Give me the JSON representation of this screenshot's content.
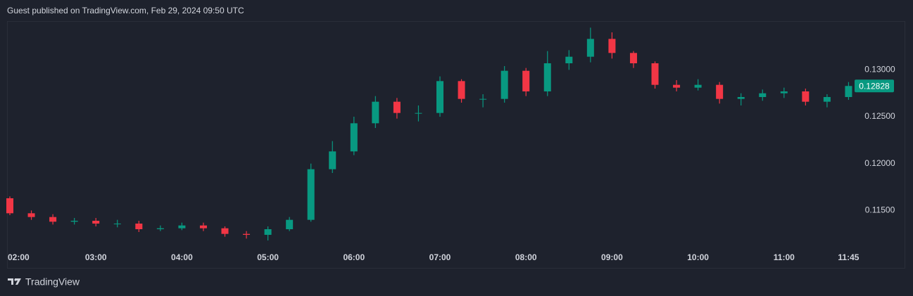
{
  "header": {
    "text": "Guest published on TradingView.com, Feb 29, 2024 09:50 UTC"
  },
  "footer": {
    "brand": "TradingView"
  },
  "chart_data": {
    "type": "candlestick",
    "categories": [
      "02:00",
      null,
      null,
      null,
      "03:00",
      null,
      null,
      null,
      "04:00",
      null,
      null,
      null,
      "05:00",
      null,
      null,
      null,
      "06:00",
      null,
      null,
      null,
      "07:00",
      null,
      null,
      null,
      "08:00",
      null,
      null,
      null,
      "09:00",
      null,
      null,
      null,
      "10:00",
      null,
      null,
      null,
      "11:00",
      null,
      null,
      "11:45"
    ],
    "open": [
      0.1163,
      0.1147,
      0.1143,
      0.1138,
      0.1139,
      0.1136,
      0.1136,
      0.113,
      0.1131,
      0.1134,
      0.1131,
      0.1125,
      0.1124,
      0.113,
      0.114,
      0.1194,
      0.1213,
      0.1243,
      0.1266,
      0.1254,
      0.1254,
      0.1288,
      0.1269,
      0.1269,
      0.1299,
      0.1277,
      0.1307,
      0.1314,
      0.1333,
      0.1318,
      0.1307,
      0.1284,
      0.1281,
      0.1284,
      0.1269,
      0.1271,
      0.1275,
      0.1277,
      0.1266,
      0.1271
    ],
    "high": [
      0.1165,
      0.115,
      0.1146,
      0.1142,
      0.1142,
      0.114,
      0.1139,
      0.1134,
      0.1137,
      0.1137,
      0.1133,
      0.1128,
      0.1133,
      0.1143,
      0.12,
      0.1224,
      0.125,
      0.1272,
      0.127,
      0.1262,
      0.1293,
      0.129,
      0.1274,
      0.1304,
      0.1302,
      0.132,
      0.1321,
      0.1345,
      0.134,
      0.132,
      0.1309,
      0.1289,
      0.129,
      0.1287,
      0.1275,
      0.1279,
      0.1281,
      0.128,
      0.1274,
      0.1287
    ],
    "low": [
      0.1145,
      0.114,
      0.1135,
      0.1135,
      0.1133,
      0.1132,
      0.1127,
      0.1128,
      0.1129,
      0.1128,
      0.1122,
      0.112,
      0.1118,
      0.1128,
      0.1138,
      0.119,
      0.1209,
      0.1238,
      0.1248,
      0.1245,
      0.125,
      0.1265,
      0.126,
      0.1265,
      0.1272,
      0.1272,
      0.13,
      0.1308,
      0.1312,
      0.1302,
      0.128,
      0.1277,
      0.1278,
      0.1264,
      0.1262,
      0.1267,
      0.127,
      0.1262,
      0.126,
      0.1268
    ],
    "close": [
      0.1147,
      0.1143,
      0.1138,
      0.1139,
      0.1136,
      0.1136,
      0.113,
      0.1131,
      0.1134,
      0.1131,
      0.1125,
      0.1124,
      0.113,
      0.114,
      0.1194,
      0.1213,
      0.1243,
      0.1266,
      0.1254,
      0.1254,
      0.1288,
      0.1269,
      0.1269,
      0.1299,
      0.1277,
      0.1307,
      0.1314,
      0.1333,
      0.1318,
      0.1307,
      0.1284,
      0.1281,
      0.1284,
      0.1269,
      0.1271,
      0.1275,
      0.1277,
      0.1266,
      0.1271,
      0.12828
    ],
    "up_color": "#089981",
    "down_color": "#f23645",
    "ylim": [
      0.1112,
      0.1352
    ],
    "yticks": [
      {
        "value": 0.115,
        "label": "0.11500"
      },
      {
        "value": 0.12,
        "label": "0.12000"
      },
      {
        "value": 0.125,
        "label": "0.12500"
      },
      {
        "value": 0.13,
        "label": "0.13000"
      }
    ],
    "grid": false
  }
}
